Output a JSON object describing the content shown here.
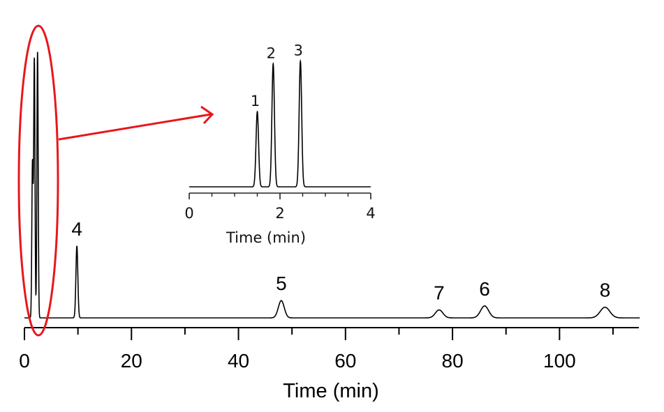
{
  "chart_data": [
    {
      "type": "line",
      "xlabel": "Time (min)",
      "ylabel": "",
      "xlim": [
        0,
        115
      ],
      "xticks": [
        0,
        20,
        40,
        60,
        80,
        100
      ],
      "minor_xticks": [
        10,
        30,
        50,
        70,
        90,
        110
      ],
      "grid": false,
      "peaks": [
        {
          "label": "",
          "x": 1.5,
          "height": 0.58,
          "width": 0.12
        },
        {
          "label": "",
          "x": 1.85,
          "height": 0.97,
          "width": 0.12
        },
        {
          "label": "",
          "x": 2.45,
          "height": 1.0,
          "width": 0.12
        },
        {
          "label": "4",
          "x": 9.8,
          "height": 0.27,
          "width": 0.18
        },
        {
          "label": "5",
          "x": 48.0,
          "height": 0.065,
          "width": 0.55
        },
        {
          "label": "7",
          "x": 77.5,
          "height": 0.03,
          "width": 0.7
        },
        {
          "label": "6",
          "x": 86.0,
          "height": 0.045,
          "width": 0.75
        },
        {
          "label": "8",
          "x": 108.5,
          "height": 0.04,
          "width": 0.9
        }
      ],
      "highlight": {
        "x_range": [
          0,
          3
        ],
        "color": "#e8161b"
      }
    },
    {
      "type": "line",
      "inset": true,
      "xlabel": "Time (min)",
      "xlim": [
        0,
        4
      ],
      "xticks": [
        0,
        2,
        4
      ],
      "minor_xticks": [
        0.5,
        1,
        1.5,
        2.5,
        3,
        3.5
      ],
      "grid": false,
      "peaks": [
        {
          "label": "1",
          "x": 1.5,
          "height": 0.55,
          "width": 0.028
        },
        {
          "label": "2",
          "x": 1.85,
          "height": 0.9,
          "width": 0.028
        },
        {
          "label": "3",
          "x": 2.45,
          "height": 0.92,
          "width": 0.028
        }
      ]
    }
  ]
}
